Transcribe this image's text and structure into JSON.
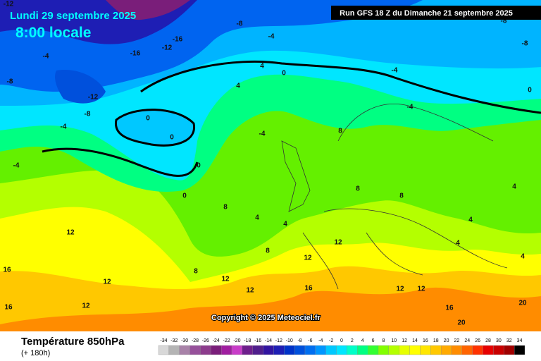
{
  "header": {
    "date": "Lundi 29 septembre 2025",
    "time": "8:00 locale",
    "run": "Run GFS 18 Z du Dimanche 21 septembre 2025"
  },
  "copyright": "Copyright © 2025 Meteociel.fr",
  "footer": {
    "title": "Température 850hPa",
    "lead": "(+ 180h)"
  },
  "contour_labels": [
    -12,
    -8,
    -16,
    -12,
    -16,
    -4,
    -4,
    -8,
    -12,
    -8,
    -4,
    0,
    0,
    0,
    0,
    0,
    4,
    -4,
    4,
    -4,
    -4,
    8,
    8,
    8,
    4,
    4,
    8,
    4,
    4,
    8,
    12,
    12,
    12,
    16,
    12,
    12,
    16,
    20,
    20,
    16,
    16,
    12,
    12,
    8,
    12,
    12,
    -8,
    -8,
    0,
    4,
    -4,
    4
  ],
  "scale": {
    "values": [
      -34,
      -32,
      -30,
      -28,
      -26,
      -24,
      -22,
      -20,
      -18,
      -16,
      -14,
      -12,
      -10,
      -8,
      -6,
      -4,
      -2,
      0,
      2,
      4,
      6,
      8,
      10,
      12,
      14,
      16,
      18,
      20,
      22,
      24,
      26,
      28,
      30,
      32,
      34
    ],
    "colors": [
      "#d8d8d8",
      "#b4b4b4",
      "#a882a8",
      "#96509a",
      "#8c3c8c",
      "#7a1e7a",
      "#a01ea0",
      "#c83cc8",
      "#6e1e8c",
      "#501e8c",
      "#3214a0",
      "#1e1eb4",
      "#0032c8",
      "#0050dc",
      "#006ef0",
      "#0096ff",
      "#00c8ff",
      "#00e6ff",
      "#00ffc8",
      "#00ff82",
      "#32ff32",
      "#82ff00",
      "#b4ff00",
      "#e6ff00",
      "#ffff00",
      "#ffe600",
      "#ffc800",
      "#ffaa00",
      "#ff8c00",
      "#ff6400",
      "#ff3200",
      "#e60000",
      "#c80000",
      "#a00000",
      "#000000"
    ]
  }
}
